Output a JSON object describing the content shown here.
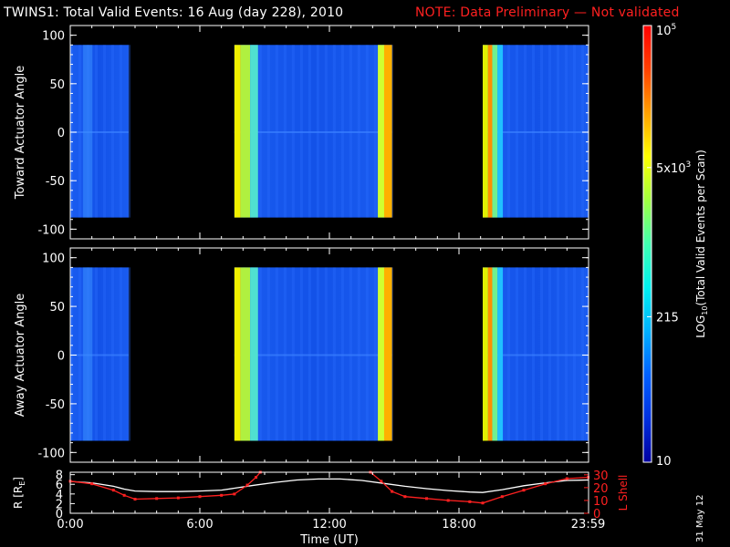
{
  "title": {
    "main": "TWINS1: Total Valid Events: 16 Aug (day 228), 2010",
    "note": "NOTE: Data Preliminary — Not validated",
    "note_color": "#ff2020"
  },
  "date_stamp": "31 May 12",
  "chart_data": [
    {
      "type": "heatmap",
      "panel": "toward",
      "ylabel": "Toward Actuator Angle",
      "ylim": [
        -110,
        110
      ],
      "yticks": [
        "100",
        "50",
        "0",
        "-50",
        "-100"
      ],
      "ytick_values": [
        100,
        50,
        0,
        -50,
        -100
      ],
      "data_y_range": [
        -88,
        90
      ],
      "xlim_hours": [
        0,
        24
      ],
      "grid": false,
      "data_blocks": [
        {
          "start_hour": 0.0,
          "end_hour": 2.7,
          "level": "low"
        },
        {
          "start_hour": 7.6,
          "end_hour": 14.9,
          "level": "low",
          "bright_edges": true
        },
        {
          "start_hour": 19.1,
          "end_hour": 24.0,
          "level": "low",
          "bright_edges": true
        }
      ]
    },
    {
      "type": "heatmap",
      "panel": "away",
      "ylabel": "Away Actuator Angle",
      "ylim": [
        -110,
        110
      ],
      "yticks": [
        "100",
        "50",
        "0",
        "-50",
        "-100"
      ],
      "ytick_values": [
        100,
        50,
        0,
        -50,
        -100
      ],
      "data_y_range": [
        -88,
        90
      ],
      "xlim_hours": [
        0,
        24
      ],
      "grid": false,
      "data_blocks": [
        {
          "start_hour": 0.0,
          "end_hour": 2.7,
          "level": "low"
        },
        {
          "start_hour": 7.6,
          "end_hour": 14.9,
          "level": "low",
          "bright_edges": true
        },
        {
          "start_hour": 19.1,
          "end_hour": 24.0,
          "level": "low",
          "bright_edges": true
        }
      ]
    },
    {
      "type": "line",
      "panel": "orbit",
      "ylabel_left": "R [R",
      "ylabel_left_sub": "E",
      "ylabel_left_tail": "]",
      "ylabel_right": "L Shell",
      "ylim_left": [
        0,
        8.5
      ],
      "ylim_right": [
        0,
        32
      ],
      "yticks_left": [
        "8",
        "6",
        "4",
        "2",
        "0"
      ],
      "ytick_values_left": [
        8,
        6,
        4,
        2,
        0
      ],
      "yticks_right": [
        "30",
        "20",
        "10",
        "0"
      ],
      "ytick_values_right": [
        30,
        20,
        10,
        0
      ],
      "xlabel": "Time (UT)",
      "xticks": [
        "0:00",
        "6:00",
        "12:00",
        "18:00",
        "23:59"
      ],
      "xtick_hours": [
        0,
        6,
        12,
        18,
        23.98
      ],
      "series": [
        {
          "axis": "left",
          "color": "#ffffff",
          "x": [
            0,
            1,
            2,
            2.5,
            3,
            4,
            5,
            6,
            7,
            7.6,
            8.5,
            9.5,
            10.5,
            11.5,
            12.5,
            13.5,
            14.5,
            15.5,
            16.5,
            17.5,
            18.5,
            19.1,
            20,
            21,
            22,
            23,
            23.98
          ],
          "y": [
            6.6,
            6.3,
            5.6,
            5.0,
            4.6,
            4.5,
            4.5,
            4.6,
            4.8,
            5.2,
            5.8,
            6.4,
            6.9,
            7.1,
            7.1,
            6.8,
            6.2,
            5.6,
            5.1,
            4.7,
            4.4,
            4.3,
            4.9,
            5.7,
            6.3,
            6.8,
            6.9
          ]
        },
        {
          "axis": "right",
          "color": "#ff2020",
          "segments": [
            {
              "x": [
                0,
                1,
                2,
                2.5,
                3,
                4,
                5,
                6,
                7,
                7.6,
                8.2,
                8.6,
                8.8
              ],
              "y": [
                25,
                23,
                18,
                14,
                11,
                11.5,
                12,
                13,
                14,
                15,
                22,
                28,
                32
              ]
            },
            {
              "x": [
                13.9,
                14.4,
                14.9,
                15.5,
                16.5,
                17.5,
                18.5,
                19.1,
                20,
                21,
                22,
                23,
                23.98
              ],
              "y": [
                32,
                25,
                17,
                13,
                11.5,
                10,
                9,
                8,
                13,
                18,
                23,
                27,
                28
              ]
            }
          ]
        }
      ]
    }
  ],
  "colorbar": {
    "label": "LOG",
    "label_sub": "10",
    "label_tail": "(Total Valid Events per Scan)",
    "min": 10,
    "max": 100000,
    "ticks": [
      {
        "value": 100000,
        "base": "10",
        "sup": "5",
        "text": "10^5"
      },
      {
        "value": 5000,
        "base": "5x10",
        "sup": "3",
        "text": "5x10^3"
      },
      {
        "value": 215,
        "base": "215",
        "sup": "",
        "text": "215"
      },
      {
        "value": 10,
        "base": "10",
        "sup": "",
        "text": "10"
      }
    ],
    "colors": [
      "#0000a0",
      "#0030e0",
      "#0060ff",
      "#00b0ff",
      "#00f0f0",
      "#40ffb0",
      "#a0ff40",
      "#ffff00",
      "#ffa000",
      "#ff4000",
      "#ff0000"
    ]
  }
}
